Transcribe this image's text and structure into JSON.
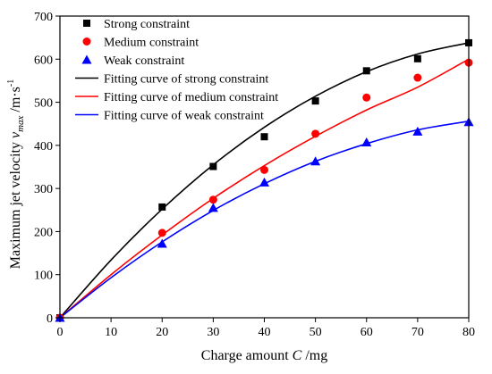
{
  "chart_data": {
    "type": "scatter",
    "xlabel": "Charge amount C /mg",
    "ylabel": "Maximum jet velocity v_max /m·s^-1",
    "xlabel_parts": {
      "prefix": "Charge amount ",
      "var": "C",
      "suffix": " /mg"
    },
    "ylabel_parts": {
      "prefix": "Maximum jet velocity ",
      "var": "v",
      "sub": "max",
      "unit": "/m·s",
      "sup": "-1"
    },
    "xlim": [
      0,
      80
    ],
    "ylim": [
      0,
      700
    ],
    "xticks": [
      0,
      10,
      20,
      30,
      40,
      50,
      60,
      70,
      80
    ],
    "yticks": [
      0,
      100,
      200,
      300,
      400,
      500,
      600,
      700
    ],
    "grid": false,
    "legend_position": "top-left",
    "series": [
      {
        "name": "Strong constraint",
        "kind": "points",
        "marker": "square",
        "color": "#000000",
        "x": [
          0,
          20,
          30,
          40,
          50,
          60,
          70,
          80
        ],
        "y": [
          0,
          257,
          351,
          420,
          503,
          573,
          601,
          638
        ]
      },
      {
        "name": "Medium constraint",
        "kind": "points",
        "marker": "circle",
        "color": "#ff0000",
        "x": [
          0,
          20,
          30,
          40,
          50,
          60,
          70,
          80
        ],
        "y": [
          0,
          197,
          274,
          343,
          427,
          511,
          557,
          592
        ]
      },
      {
        "name": "Weak constraint",
        "kind": "points",
        "marker": "triangle",
        "color": "#0000ff",
        "x": [
          0,
          20,
          30,
          40,
          50,
          60,
          70,
          80
        ],
        "y": [
          0,
          172,
          255,
          314,
          363,
          407,
          432,
          454
        ]
      },
      {
        "name": "Fitting curve of strong constraint",
        "kind": "curve",
        "color": "#000000",
        "x": [
          0,
          10,
          20,
          30,
          40,
          50,
          60,
          70,
          80
        ],
        "y": [
          0,
          134,
          252,
          355,
          442,
          514,
          571,
          612,
          638
        ]
      },
      {
        "name": "Fitting curve of medium constraint",
        "kind": "curve",
        "color": "#ff0000",
        "x": [
          0,
          10,
          20,
          30,
          40,
          50,
          60,
          70,
          80
        ],
        "y": [
          0,
          100,
          192,
          277,
          353,
          421,
          482,
          535,
          600
        ]
      },
      {
        "name": "Fitting curve of weak constraint",
        "kind": "curve",
        "color": "#0000ff",
        "x": [
          0,
          10,
          20,
          30,
          40,
          50,
          60,
          70,
          80
        ],
        "y": [
          0,
          93,
          176,
          249,
          311,
          363,
          404,
          436,
          456
        ]
      }
    ]
  }
}
